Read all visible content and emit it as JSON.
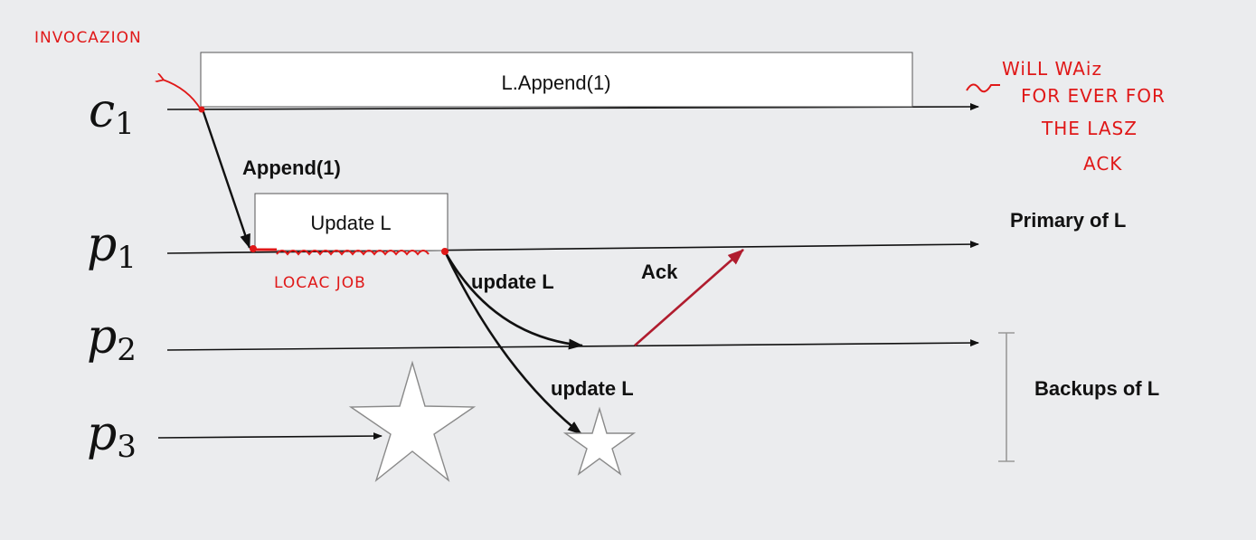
{
  "processes": {
    "c1": {
      "name": "c",
      "sub": "1"
    },
    "p1": {
      "name": "p",
      "sub": "1"
    },
    "p2": {
      "name": "p",
      "sub": "2"
    },
    "p3": {
      "name": "p",
      "sub": "3"
    }
  },
  "boxes": {
    "client_op": "L.Append(1)",
    "primary_op": "Update L"
  },
  "messages": {
    "append": "Append(1)",
    "update_p2": "update L",
    "update_p3": "update L",
    "ack": "Ack"
  },
  "roles": {
    "primary": "Primary of L",
    "backups": "Backups of L"
  },
  "annotations": {
    "invocation": "INVOCAZION",
    "local_job": "LOCAC JOB",
    "wait_line1": "WiLL WAiz",
    "wait_line2": "FOR EVER FOR",
    "wait_line3": "THE LASZ",
    "wait_line4": "ACK"
  },
  "colors": {
    "background": "#ebecee",
    "ink": "#111111",
    "annotation": "#e01818",
    "ack_arrow": "#b01c2e"
  }
}
